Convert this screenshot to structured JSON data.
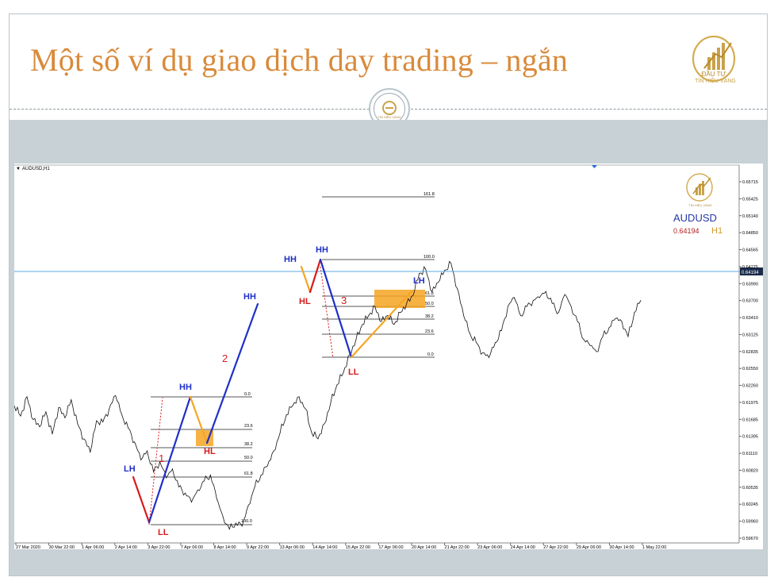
{
  "slide": {
    "title": "Một số ví dụ giao dịch day trading – ngắn",
    "logo_brand": "ĐẦU TƯ",
    "logo_caption": "TÍN HIỆU VÀNG"
  },
  "chart": {
    "symbol_label": "AUDUSD,H1",
    "info_symbol": "AUDUSD",
    "info_price": "0.64194",
    "info_timeframe": "H1",
    "current_price_tag": "0.64194",
    "colors": {
      "bull_leg": "#1f2fc8",
      "bear_leg": "#d81b1b",
      "pullback": "#f5a623",
      "zone": "#f5a623",
      "price_line": "#5aa8e6"
    }
  },
  "chart_data": {
    "type": "line",
    "title": "AUDUSD,H1",
    "y_ticks": [
      "0.65715",
      "0.65425",
      "0.65140",
      "0.64850",
      "0.64565",
      "0.64275",
      "0.63990",
      "0.63700",
      "0.63410",
      "0.63125",
      "0.62835",
      "0.62550",
      "0.62260",
      "0.61975",
      "0.61685",
      "0.61395",
      "0.61110",
      "0.60820",
      "0.60535",
      "0.60245",
      "0.59960",
      "0.59670"
    ],
    "x_ticks": [
      "27 Mar 2020",
      "30 Mar 22:00",
      "1 Apr 06:00",
      "2 Apr 14:00",
      "3 Apr 22:00",
      "7 Apr 06:00",
      "8 Apr 14:00",
      "9 Apr 22:00",
      "13 Apr 06:00",
      "14 Apr 14:00",
      "15 Apr 22:00",
      "17 Apr 06:00",
      "20 Apr 14:00",
      "21 Apr 22:00",
      "23 Apr 06:00",
      "24 Apr 14:00",
      "27 Apr 22:00",
      "29 Apr 06:00",
      "30 Apr 14:00",
      "1 May 22:00"
    ],
    "ylim": [
      0.5967,
      0.6595
    ],
    "x_count": 100,
    "series": [
      {
        "values": [
          0.6195,
          0.6178,
          0.621,
          0.6172,
          0.616,
          0.6185,
          0.6148,
          0.6192,
          0.6175,
          0.6205,
          0.6165,
          0.614,
          0.6118,
          0.617,
          0.6168,
          0.619,
          0.6212,
          0.618,
          0.6158,
          0.6135,
          0.6105,
          0.612,
          0.6085,
          0.6102,
          0.6075,
          0.609,
          0.606,
          0.605,
          0.6035,
          0.6055,
          0.607,
          0.608,
          0.604,
          0.601,
          0.599,
          0.6,
          0.5995,
          0.603,
          0.606,
          0.608,
          0.6095,
          0.612,
          0.615,
          0.618,
          0.6195,
          0.621,
          0.619,
          0.615,
          0.614,
          0.6165,
          0.62,
          0.623,
          0.625,
          0.628,
          0.6305,
          0.633,
          0.6345,
          0.636,
          0.6335,
          0.6345,
          0.633,
          0.635,
          0.6365,
          0.6378,
          0.6415,
          0.6422,
          0.6385,
          0.64,
          0.642,
          0.6432,
          0.639,
          0.6345,
          0.6315,
          0.63,
          0.6283,
          0.6275,
          0.63,
          0.632,
          0.636,
          0.6375,
          0.6345,
          0.636,
          0.637,
          0.6375,
          0.6385,
          0.6365,
          0.635,
          0.638,
          0.636,
          0.6335,
          0.6305,
          0.6295,
          0.6285,
          0.631,
          0.6325,
          0.634,
          0.6335,
          0.631,
          0.635,
          0.637
        ]
      }
    ],
    "extra_series_note": "",
    "patterns": {
      "swing_labels": [
        "LH",
        "LL",
        "HH",
        "HL",
        "HH",
        "HL",
        "HH",
        "LL",
        "LH",
        "HH"
      ],
      "leg_numbers": [
        "1",
        "2",
        "3"
      ],
      "fib_set_1": [
        "0.0",
        "23.6",
        "38.2",
        "50.0",
        "61.8",
        "100.0"
      ],
      "fib_set_2": [
        "161.8",
        "100.0",
        "61.8",
        "50.0",
        "38.2",
        "23.6",
        "0.0"
      ]
    }
  }
}
